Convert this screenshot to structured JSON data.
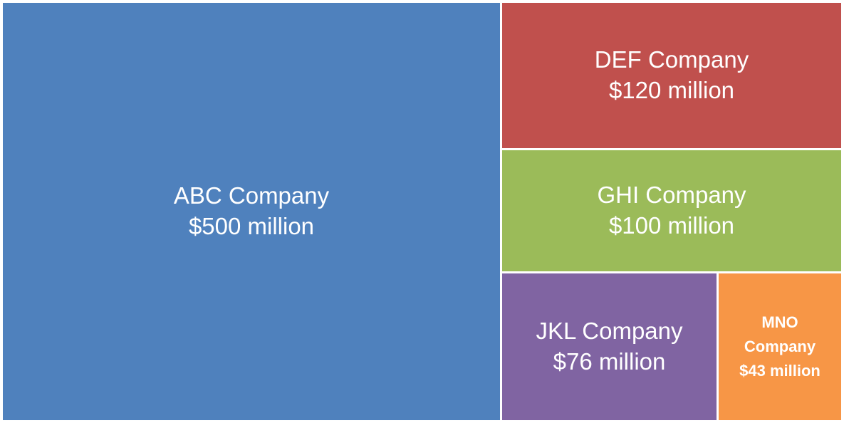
{
  "chart_data": {
    "type": "treemap",
    "title": "",
    "items": [
      {
        "name": "ABC Company",
        "value": 500,
        "label": "$500 million",
        "color": "#4F81BD"
      },
      {
        "name": "DEF Company",
        "value": 120,
        "label": "$120 million",
        "color": "#C0504D"
      },
      {
        "name": "GHI Company",
        "value": 100,
        "label": "$100 million",
        "color": "#9BBB59"
      },
      {
        "name": "JKL Company",
        "value": 76,
        "label": "$76 million",
        "color": "#8064A2"
      },
      {
        "name": "MNO Company",
        "value": 43,
        "label": "$43 million",
        "color": "#F79646"
      }
    ]
  }
}
